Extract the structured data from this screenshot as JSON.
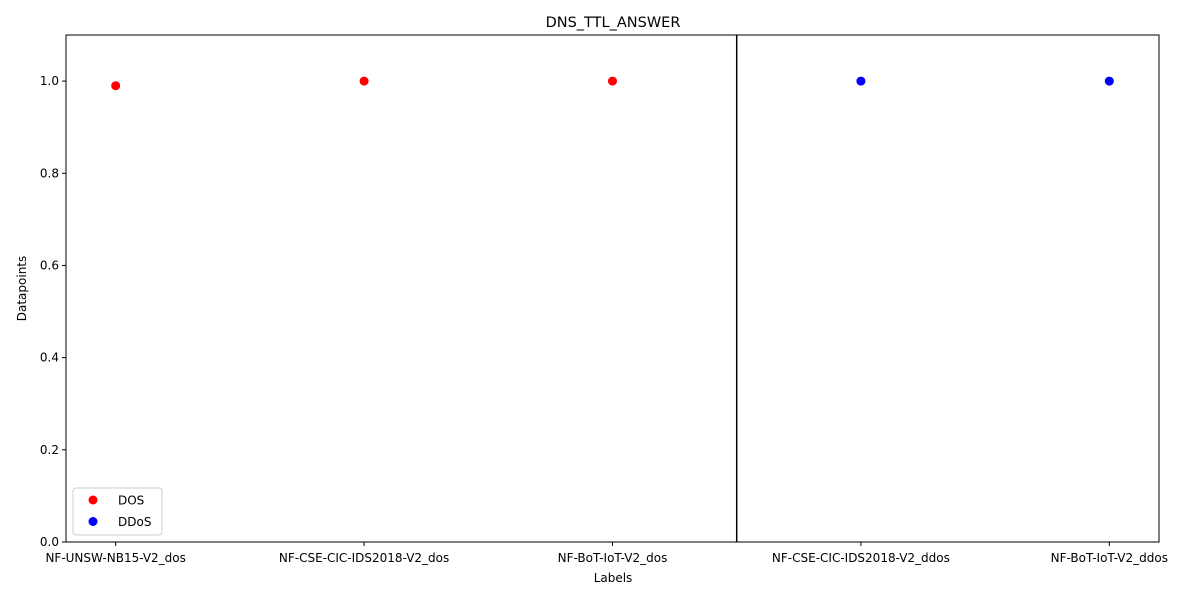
{
  "chart_data": {
    "type": "scatter",
    "title": "DNS_TTL_ANSWER",
    "xlabel": "Labels",
    "ylabel": "Datapoints",
    "categories": [
      "NF-UNSW-NB15-V2_dos",
      "NF-CSE-CIC-IDS2018-V2_dos",
      "NF-BoT-IoT-V2_dos",
      "NF-CSE-CIC-IDS2018-V2_ddos",
      "NF-BoT-IoT-V2_ddos"
    ],
    "ylim": [
      0,
      1.1
    ],
    "yticks": [
      "0.0",
      "0.2",
      "0.4",
      "0.6",
      "0.8",
      "1.0"
    ],
    "separator_between_category_index": [
      2,
      3
    ],
    "legend_position": "lower-left",
    "series": [
      {
        "name": "DOS",
        "color": "#ff0000",
        "points": [
          {
            "category": "NF-UNSW-NB15-V2_dos",
            "y": 0.99
          },
          {
            "category": "NF-CSE-CIC-IDS2018-V2_dos",
            "y": 1.0
          },
          {
            "category": "NF-BoT-IoT-V2_dos",
            "y": 1.0
          }
        ]
      },
      {
        "name": "DDoS",
        "color": "#0000ff",
        "points": [
          {
            "category": "NF-CSE-CIC-IDS2018-V2_ddos",
            "y": 1.0
          },
          {
            "category": "NF-BoT-IoT-V2_ddos",
            "y": 1.0
          }
        ]
      }
    ]
  }
}
